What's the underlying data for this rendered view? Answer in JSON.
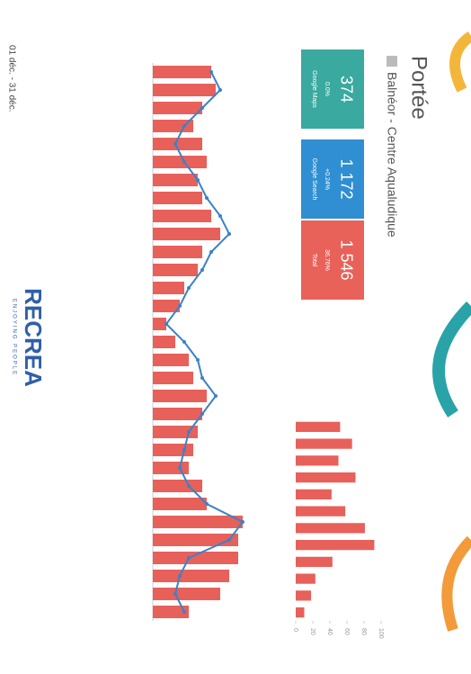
{
  "header": {
    "title": "Portée",
    "subtitle": "Balnéor - Centre Aqualudique",
    "period": "01 déc. - 31 déc."
  },
  "kpis": [
    {
      "value": "374",
      "change": "0.0%",
      "label": "Google Maps",
      "color": "#3aa99f"
    },
    {
      "value": "1 172",
      "change": "+0.24%",
      "label": "Google Search",
      "color": "#2f8fd2"
    },
    {
      "value": "1 546",
      "change": "36.76%",
      "label": "Total",
      "color": "#e8625a"
    }
  ],
  "logo": {
    "name": "RECREA",
    "tagline": "ENJOYING PEOPLE"
  },
  "chart_data": [
    {
      "type": "combo",
      "categories": [
        null,
        null,
        null,
        null,
        null,
        null,
        null,
        null,
        null,
        null,
        null,
        null,
        null,
        null,
        null,
        null,
        null,
        null,
        null,
        null,
        null,
        null,
        null,
        null,
        null,
        null,
        null,
        null,
        null,
        null,
        null
      ],
      "series": [
        {
          "kind": "bar",
          "color": "#e8605a",
          "values": [
            65,
            70,
            55,
            45,
            55,
            60,
            50,
            55,
            65,
            75,
            55,
            50,
            35,
            30,
            15,
            25,
            40,
            45,
            60,
            55,
            50,
            45,
            40,
            55,
            60,
            100,
            95,
            95,
            85,
            75,
            40
          ]
        },
        {
          "kind": "line",
          "color": "#3b82c8",
          "values": [
            65,
            75,
            55,
            35,
            25,
            35,
            50,
            60,
            75,
            85,
            65,
            55,
            40,
            30,
            15,
            35,
            50,
            55,
            70,
            55,
            40,
            35,
            30,
            40,
            60,
            100,
            85,
            40,
            30,
            25,
            35
          ]
        }
      ],
      "ylim": [
        0,
        120
      ],
      "grid": true
    },
    {
      "type": "bar",
      "categories": [
        null,
        null,
        null,
        null,
        null,
        null,
        null,
        null,
        null,
        null,
        null,
        null
      ],
      "values": [
        52,
        66,
        50,
        70,
        42,
        58,
        81,
        92,
        43,
        23,
        18,
        10
      ],
      "color": "#e8605a",
      "ylim": [
        0,
        100
      ],
      "yticks": [
        0,
        20,
        40,
        60,
        80,
        100
      ],
      "grid": false
    }
  ]
}
